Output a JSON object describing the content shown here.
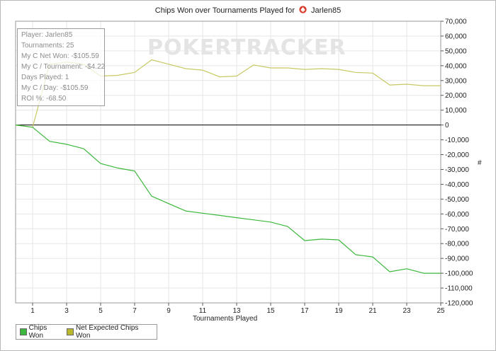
{
  "chart_data": {
    "type": "line",
    "title_prefix": "Chips Won over Tournaments Played for",
    "title_player": "Jarlen85",
    "xlabel": "Tournaments Played",
    "ylabel": "#",
    "xlim": [
      0,
      25
    ],
    "ylim": [
      -120000,
      70000
    ],
    "x_ticks": [
      1,
      3,
      5,
      7,
      9,
      11,
      13,
      15,
      17,
      19,
      21,
      23,
      25
    ],
    "y_ticks": [
      70000,
      60000,
      50000,
      40000,
      30000,
      20000,
      10000,
      0,
      -10000,
      -20000,
      -30000,
      -40000,
      -50000,
      -60000,
      -70000,
      -80000,
      -90000,
      -100000,
      -110000,
      -120000
    ],
    "y_tick_labels": [
      "70,000",
      "60,000",
      "50,000",
      "40,000",
      "30,000",
      "20,000",
      "10,000",
      "0",
      "-10,000",
      "-20,000",
      "-30,000",
      "-40,000",
      "-50,000",
      "-60,000",
      "-70,000",
      "-80,000",
      "-90,000",
      "-100,000",
      "-110,000",
      "-120,000"
    ],
    "grid": true,
    "legend_position": "bottom-left",
    "series": [
      {
        "name": "Chips Won",
        "color": "#3cb83c",
        "x": [
          0,
          1,
          2,
          3,
          4,
          5,
          6,
          7,
          8,
          9,
          10,
          11,
          12,
          13,
          14,
          15,
          16,
          17,
          18,
          19,
          20,
          21,
          22,
          23,
          24,
          25
        ],
        "values": [
          0,
          -1500,
          -11000,
          -13000,
          -16000,
          -26000,
          -29000,
          -31000,
          -48000,
          -53000,
          -58000,
          -59500,
          -61000,
          -62500,
          -64000,
          -65500,
          -68500,
          -78000,
          -77000,
          -77500,
          -87500,
          -89000,
          -99000,
          -97000,
          -100000,
          -100000
        ]
      },
      {
        "name": "Net Expected Chips Won",
        "color": "#c8c864",
        "x": [
          0,
          1,
          2,
          3,
          4,
          5,
          6,
          7,
          8,
          9,
          10,
          11,
          12,
          13,
          14,
          15,
          16,
          17,
          18,
          19,
          20,
          21,
          22,
          23,
          24,
          25
        ],
        "values": [
          0,
          -1500,
          41000,
          42500,
          41000,
          33000,
          33500,
          35500,
          44000,
          41000,
          38000,
          37000,
          32500,
          33000,
          40500,
          38500,
          38500,
          37500,
          38000,
          37500,
          35500,
          35000,
          27000,
          27500,
          26500,
          26500
        ]
      }
    ]
  },
  "infobox": {
    "player": "Player: Jarlen85",
    "tournaments": "Tournaments: 25",
    "net_won": "My C Net Won: -$105.59",
    "per_tournament": "My C / Tournament: -$4.22",
    "days_played": "Days Played: 1",
    "per_day": "My C / Day: -$105.59",
    "roi": "ROI %: -68.50"
  },
  "watermark": "POKERTRACKER",
  "legend": {
    "items": [
      {
        "label": "Chips Won",
        "color": "#3cb83c"
      },
      {
        "label": "Net Expected Chips Won",
        "color": "#b8b82a"
      }
    ]
  },
  "colors": {
    "grid": "#e6e6e6",
    "zero_line": "#000000",
    "spade": "#d83a2a"
  }
}
